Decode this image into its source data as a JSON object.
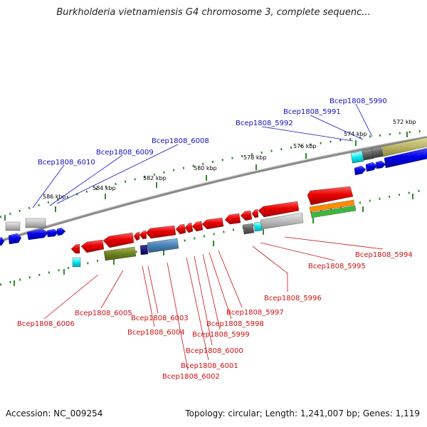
{
  "title": "Burkholderia vietnamiensis G4 chromosome 3, complete sequenc...",
  "footer": {
    "accession": "Accession: NC_009254",
    "topology": "Topology: circular; Length: 1,241,007 bp; Genes: 1,119"
  },
  "scale_labels": [
    "586 kbp",
    "584 kbp",
    "582 kbp",
    "580 kbp",
    "578 kbp",
    "576 kbp",
    "574 kbp",
    "572 kbp"
  ],
  "gene_labels_top": [
    "Bcep1808_6010",
    "Bcep1808_6009",
    "Bcep1808_6008",
    "Bcep1808_5992",
    "Bcep1808_5991",
    "Bcep1808_5990"
  ],
  "gene_labels_bottom": [
    "Bcep1808_6006",
    "Bcep1808_6005",
    "Bcep1808_6004",
    "Bcep1808_6003",
    "Bcep1808_6002",
    "Bcep1808_6001",
    "Bcep1808_6000",
    "Bcep1808_5999",
    "Bcep1808_5998",
    "Bcep1808_5997",
    "Bcep1808_5996",
    "Bcep1808_5995",
    "Bcep1808_5994"
  ],
  "colors": {
    "backbone": "#8a8a8a",
    "ticks": "#2e8b2e",
    "top_label": "#1010c0",
    "bottom_label": "#d01010",
    "forward_gene": "#1010e0",
    "reverse_gene": "#e01010"
  }
}
